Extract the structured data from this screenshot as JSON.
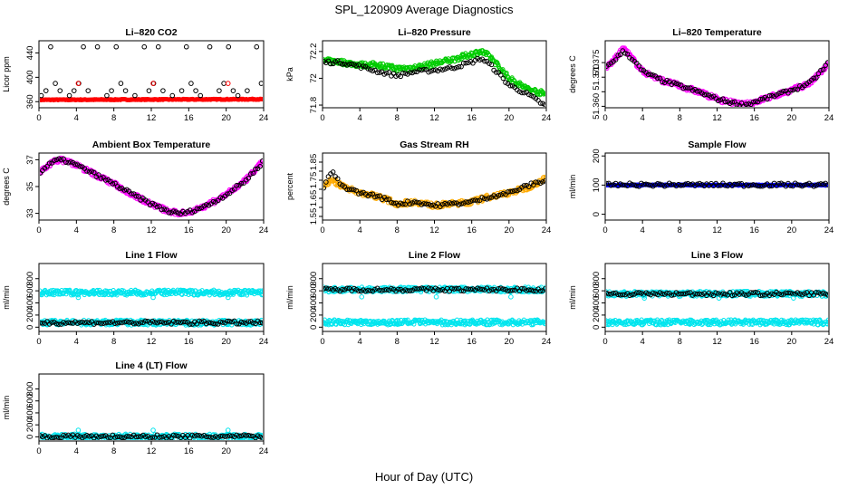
{
  "figure": {
    "title": "SPL_120909  Average Diagnostics",
    "xlabel": "Hour of Day (UTC)"
  },
  "chart_data": [
    {
      "type": "scatter",
      "title": "Li–820 CO2",
      "ylabel": "Licor ppm",
      "xlim": [
        0,
        24
      ],
      "ylim": [
        350,
        460
      ],
      "xticks": [
        0,
        4,
        8,
        12,
        16,
        20,
        24
      ],
      "yticks": [
        360,
        400,
        440
      ],
      "series": [
        {
          "color": "#ff0000",
          "pattern": "line",
          "x": [
            0,
            24
          ],
          "y": [
            363,
            364
          ]
        },
        {
          "color": "#000000",
          "pattern": "discrete",
          "x": [
            0.25,
            0.75,
            1.25,
            1.75,
            2.25,
            3.25,
            3.75,
            4.25,
            4.75,
            5.25,
            6.25,
            7.25,
            7.75,
            8.25,
            8.75,
            9.25,
            10.25,
            11.25,
            11.75,
            12.25,
            12.75,
            13.25,
            14.25,
            15.25,
            15.75,
            16.25,
            16.75,
            17.25,
            18.25,
            19.25,
            19.75,
            20.25,
            20.75,
            21.25,
            22.25,
            23.25,
            23.75
          ],
          "y": [
            370,
            378,
            450,
            390,
            378,
            370,
            378,
            390,
            450,
            378,
            450,
            370,
            378,
            450,
            390,
            378,
            370,
            450,
            378,
            390,
            450,
            378,
            370,
            378,
            450,
            390,
            378,
            370,
            450,
            378,
            390,
            450,
            378,
            370,
            378,
            450,
            390
          ]
        },
        {
          "color": "#ff0000",
          "pattern": "discrete",
          "x": [
            4.2,
            12.2,
            20.2
          ],
          "y": [
            390,
            390,
            390
          ]
        }
      ]
    },
    {
      "type": "scatter",
      "title": "Li–820 Pressure",
      "ylabel": "kPa",
      "xlim": [
        0,
        24
      ],
      "ylim": [
        71.78,
        72.28
      ],
      "xticks": [
        0,
        4,
        8,
        12,
        16,
        20,
        24
      ],
      "yticks": [
        71.8,
        72.0,
        72.2
      ],
      "series": [
        {
          "color": "#00cc00",
          "pattern": "dense",
          "x": [
            0,
            2,
            4,
            6,
            8,
            10,
            12,
            14,
            16,
            17,
            18,
            20,
            22,
            24
          ],
          "y": [
            72.13,
            72.12,
            72.1,
            72.1,
            72.07,
            72.08,
            72.11,
            72.14,
            72.18,
            72.2,
            72.16,
            72.0,
            71.92,
            71.88
          ]
        },
        {
          "color": "#000000",
          "pattern": "sparse",
          "x": [
            0,
            2,
            4,
            6,
            8,
            10,
            12,
            14,
            16,
            17,
            18,
            20,
            22,
            24
          ],
          "y": [
            72.12,
            72.12,
            72.09,
            72.05,
            72.02,
            72.05,
            72.06,
            72.08,
            72.12,
            72.15,
            72.1,
            71.95,
            71.88,
            71.79
          ]
        }
      ]
    },
    {
      "type": "scatter",
      "title": "Li–820 Temperature",
      "ylabel": "degrees C",
      "xlim": [
        0,
        24
      ],
      "ylim": [
        51.3595,
        51.3825
      ],
      "xticks": [
        0,
        4,
        8,
        12,
        16,
        20,
        24
      ],
      "yticks": [
        51.36,
        51.365,
        51.37,
        51.375
      ],
      "ytick_labels": [
        "51.360",
        "",
        "51.370",
        "51.375"
      ],
      "series": [
        {
          "color": "#ff00ff",
          "pattern": "dense",
          "x": [
            0,
            1,
            2,
            3,
            4,
            6,
            8,
            10,
            12,
            14,
            15,
            16,
            18,
            20,
            22,
            24
          ],
          "y": [
            51.373,
            51.376,
            51.38,
            51.376,
            51.372,
            51.369,
            51.367,
            51.365,
            51.3625,
            51.361,
            51.3605,
            51.3615,
            51.3635,
            51.3655,
            51.368,
            51.3745
          ]
        },
        {
          "color": "#000000",
          "pattern": "sparse",
          "x": [
            0,
            1,
            2,
            3,
            4,
            6,
            8,
            10,
            12,
            14,
            15,
            16,
            18,
            20,
            22,
            24
          ],
          "y": [
            51.373,
            51.376,
            51.379,
            51.376,
            51.372,
            51.369,
            51.367,
            51.365,
            51.3625,
            51.361,
            51.3605,
            51.3615,
            51.3635,
            51.3655,
            51.368,
            51.375
          ]
        }
      ]
    },
    {
      "type": "scatter",
      "title": "Ambient Box Temperature",
      "ylabel": "degrees C",
      "xlim": [
        0,
        24
      ],
      "ylim": [
        32.5,
        37.5
      ],
      "xticks": [
        0,
        4,
        8,
        12,
        16,
        20,
        24
      ],
      "yticks": [
        33,
        35,
        37
      ],
      "series": [
        {
          "color": "#ff00ff",
          "pattern": "dense",
          "x": [
            0,
            1,
            2,
            3,
            4,
            6,
            8,
            10,
            12,
            14,
            15,
            16,
            18,
            20,
            22,
            24
          ],
          "y": [
            36,
            36.6,
            37,
            36.9,
            36.6,
            35.9,
            35.2,
            34.4,
            33.7,
            33.1,
            33.0,
            33.1,
            33.6,
            34.4,
            35.4,
            36.9
          ]
        },
        {
          "color": "#000000",
          "pattern": "sparse",
          "x": [
            0,
            1,
            2,
            3,
            4,
            6,
            8,
            10,
            12,
            14,
            15,
            16,
            18,
            20,
            22,
            24
          ],
          "y": [
            36,
            36.6,
            37,
            36.9,
            36.6,
            35.9,
            35.2,
            34.4,
            33.7,
            33.1,
            33.0,
            33.1,
            33.6,
            34.4,
            35.4,
            36.9
          ]
        }
      ]
    },
    {
      "type": "scatter",
      "title": "Gas Stream RH",
      "ylabel": "percent",
      "xlim": [
        0,
        24
      ],
      "ylim": [
        1.53,
        1.9
      ],
      "xticks": [
        0,
        4,
        8,
        12,
        16,
        20,
        24
      ],
      "yticks": [
        1.55,
        1.6,
        1.65,
        1.7,
        1.75,
        1.8,
        1.85
      ],
      "ytick_labels": [
        "1.55",
        "",
        "1.65",
        "",
        "1.75",
        "",
        "1.85"
      ],
      "series": [
        {
          "color": "#ffaa00",
          "pattern": "dense",
          "x": [
            0,
            1,
            2,
            4,
            6,
            8,
            10,
            12,
            14,
            16,
            18,
            20,
            22,
            24
          ],
          "y": [
            1.72,
            1.75,
            1.72,
            1.68,
            1.66,
            1.62,
            1.63,
            1.61,
            1.62,
            1.63,
            1.66,
            1.68,
            1.71,
            1.76
          ]
        },
        {
          "color": "#000000",
          "pattern": "sparse",
          "x": [
            0,
            1,
            2,
            4,
            6,
            8,
            10,
            12,
            14,
            16,
            18,
            20,
            22,
            24
          ],
          "y": [
            1.7,
            1.8,
            1.72,
            1.68,
            1.66,
            1.62,
            1.63,
            1.61,
            1.62,
            1.63,
            1.66,
            1.68,
            1.72,
            1.75
          ]
        }
      ]
    },
    {
      "type": "scatter",
      "title": "Sample Flow",
      "ylabel": "ml/min",
      "xlim": [
        0,
        24
      ],
      "ylim": [
        -20,
        210
      ],
      "xticks": [
        0,
        4,
        8,
        12,
        16,
        20,
        24
      ],
      "yticks": [
        0,
        100,
        200
      ],
      "series": [
        {
          "color": "#0000ff",
          "pattern": "line",
          "x": [
            0,
            24
          ],
          "y": [
            100,
            100
          ]
        },
        {
          "color": "#000000",
          "pattern": "sparse",
          "x": [
            0,
            24
          ],
          "y": [
            101,
            101
          ]
        }
      ]
    },
    {
      "type": "scatter",
      "title": "Line 1 Flow",
      "ylabel": "ml/min",
      "xlim": [
        0,
        24
      ],
      "ylim": [
        -70,
        1050
      ],
      "xticks": [
        0,
        4,
        8,
        12,
        16,
        20,
        24
      ],
      "yticks": [
        0,
        200,
        400,
        600,
        800
      ],
      "series": [
        {
          "color": "#00e5ee",
          "pattern": "dense",
          "x": [
            0,
            24
          ],
          "y": [
            570,
            570
          ]
        },
        {
          "color": "#00e5ee",
          "pattern": "discrete",
          "x": [
            4.2,
            12.2,
            20.2
          ],
          "y": [
            490,
            490,
            490
          ]
        },
        {
          "color": "#00e5ee",
          "pattern": "dense",
          "x": [
            0,
            24
          ],
          "y": [
            75,
            75
          ]
        },
        {
          "color": "#000000",
          "pattern": "sparse",
          "x": [
            0,
            24
          ],
          "y": [
            75,
            75
          ]
        }
      ]
    },
    {
      "type": "scatter",
      "title": "Line 2 Flow",
      "ylabel": "ml/min",
      "xlim": [
        0,
        24
      ],
      "ylim": [
        -70,
        1050
      ],
      "xticks": [
        0,
        4,
        8,
        12,
        16,
        20,
        24
      ],
      "yticks": [
        0,
        200,
        400,
        600,
        800
      ],
      "series": [
        {
          "color": "#00e5ee",
          "pattern": "dense",
          "x": [
            0,
            24
          ],
          "y": [
            620,
            620
          ]
        },
        {
          "color": "#000000",
          "pattern": "sparse",
          "x": [
            0,
            24
          ],
          "y": [
            620,
            620
          ]
        },
        {
          "color": "#00e5ee",
          "pattern": "discrete",
          "x": [
            4.2,
            12.2,
            20.2
          ],
          "y": [
            500,
            500,
            500
          ]
        },
        {
          "color": "#00e5ee",
          "pattern": "dense",
          "x": [
            0,
            24
          ],
          "y": [
            80,
            80
          ]
        }
      ]
    },
    {
      "type": "scatter",
      "title": "Line 3 Flow",
      "ylabel": "ml/min",
      "xlim": [
        0,
        24
      ],
      "ylim": [
        -70,
        1050
      ],
      "xticks": [
        0,
        4,
        8,
        12,
        16,
        20,
        24
      ],
      "yticks": [
        0,
        200,
        400,
        600,
        800
      ],
      "series": [
        {
          "color": "#00e5ee",
          "pattern": "dense",
          "x": [
            0,
            24
          ],
          "y": [
            550,
            550
          ]
        },
        {
          "color": "#000000",
          "pattern": "sparse",
          "x": [
            0,
            24
          ],
          "y": [
            550,
            550
          ]
        },
        {
          "color": "#00e5ee",
          "pattern": "discrete",
          "x": [
            4.2,
            12.2,
            20.2
          ],
          "y": [
            480,
            480,
            480
          ]
        },
        {
          "color": "#00e5ee",
          "pattern": "dense",
          "x": [
            0,
            24
          ],
          "y": [
            80,
            80
          ]
        }
      ]
    },
    {
      "type": "scatter",
      "title": "Line 4 (LT) Flow",
      "ylabel": "ml/min",
      "xlim": [
        0,
        24
      ],
      "ylim": [
        -70,
        1050
      ],
      "xticks": [
        0,
        4,
        8,
        12,
        16,
        20,
        24
      ],
      "yticks": [
        0,
        200,
        400,
        600,
        800
      ],
      "series": [
        {
          "color": "#00e5ee",
          "pattern": "dense",
          "x": [
            0,
            24
          ],
          "y": [
            5,
            5
          ]
        },
        {
          "color": "#000000",
          "pattern": "sparse",
          "x": [
            0,
            24
          ],
          "y": [
            5,
            5
          ]
        },
        {
          "color": "#00e5ee",
          "pattern": "discrete",
          "x": [
            4.2,
            12.2,
            20.2
          ],
          "y": [
            110,
            110,
            110
          ]
        }
      ]
    }
  ]
}
